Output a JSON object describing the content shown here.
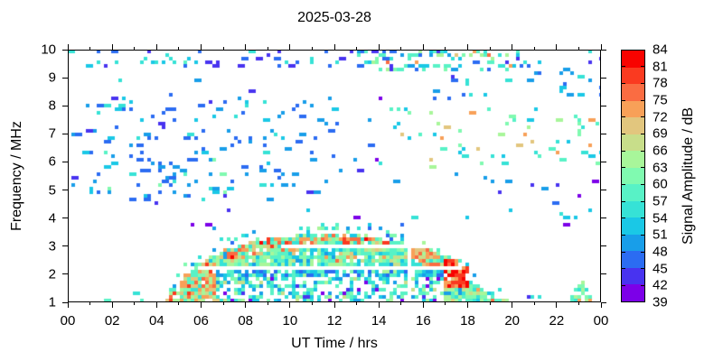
{
  "title": "2025-03-28",
  "chart_data": {
    "type": "heatmap",
    "title": "2025-03-28",
    "xlabel": "UT Time / hrs",
    "ylabel": "Frequency / MHz",
    "xlim": [
      0,
      24
    ],
    "ylim": [
      1,
      10
    ],
    "x_ticks": {
      "labels": [
        "00",
        "02",
        "04",
        "06",
        "08",
        "10",
        "12",
        "14",
        "16",
        "18",
        "20",
        "22",
        "00"
      ],
      "hours": [
        0,
        2,
        4,
        6,
        8,
        10,
        12,
        14,
        16,
        18,
        20,
        22,
        24
      ],
      "minor_hours": [
        1,
        3,
        5,
        7,
        9,
        11,
        13,
        15,
        17,
        19,
        21,
        23
      ]
    },
    "y_ticks": {
      "labels": [
        "1",
        "2",
        "3",
        "4",
        "5",
        "6",
        "7",
        "8",
        "9",
        "10"
      ],
      "values": [
        1,
        2,
        3,
        4,
        5,
        6,
        7,
        8,
        9,
        10
      ]
    },
    "colorbar": {
      "label": "Signal Amplitude / dB",
      "tick_labels": [
        "39",
        "42",
        "45",
        "48",
        "51",
        "54",
        "57",
        "60",
        "63",
        "66",
        "69",
        "72",
        "75",
        "78",
        "81",
        "84"
      ],
      "tick_values": [
        39,
        42,
        45,
        48,
        51,
        54,
        57,
        60,
        63,
        66,
        69,
        72,
        75,
        78,
        81,
        84
      ],
      "segment_colors_low_to_high": [
        "#7c00e8",
        "#4833f0",
        "#2b6cf2",
        "#189ee9",
        "#1ac8e6",
        "#36e2d6",
        "#58f2c6",
        "#80fab0",
        "#a8f69a",
        "#c8de8a",
        "#e2c67e",
        "#f8a058",
        "#fa6c42",
        "#fa3a20",
        "#f80300"
      ]
    },
    "heatmap": {
      "seed": 7,
      "cell": 4,
      "envelope": [
        [
          4.4,
          1.05
        ],
        [
          5.0,
          1.7
        ],
        [
          6.0,
          2.45
        ],
        [
          7.0,
          2.9
        ],
        [
          8.0,
          3.15
        ],
        [
          9.0,
          3.3
        ],
        [
          10.5,
          3.42
        ],
        [
          12.0,
          3.45
        ],
        [
          13.5,
          3.38
        ],
        [
          14.8,
          3.22
        ],
        [
          15.8,
          2.95
        ],
        [
          16.8,
          2.7
        ],
        [
          17.4,
          2.55
        ],
        [
          18.0,
          2.25
        ],
        [
          18.3,
          1.6
        ],
        [
          18.9,
          1.35
        ],
        [
          19.6,
          1.05
        ]
      ],
      "white_stripes": [
        {
          "t": [
            5.9,
            17.7
          ],
          "f": [
            2.12,
            2.3
          ]
        },
        {
          "t": [
            9.55,
            17.4
          ],
          "f": [
            2.9,
            3.06
          ]
        }
      ],
      "vertical_gap": {
        "t": [
          15.22,
          15.5
        ],
        "f": [
          1,
          3.75
        ]
      },
      "dome_regions": [
        {
          "t": [
            16.9,
            18.0
          ],
          "f": [
            1.55,
            2.6
          ],
          "p": 0.93,
          "db": [
            [
              5,
              78,
              84
            ],
            [
              2,
              72,
              78
            ],
            [
              1,
              63,
              72
            ]
          ]
        },
        {
          "t": [
            15.5,
            16.9
          ],
          "f": [
            2.15,
            2.9
          ],
          "p": 0.88,
          "db": [
            [
              3,
              69,
              78
            ],
            [
              2,
              60,
              69
            ],
            [
              2,
              54,
              60
            ]
          ]
        },
        {
          "t": [
            4.4,
            5.05
          ],
          "f": [
            1.0,
            1.8
          ],
          "p": 0.9,
          "db": [
            [
              3,
              72,
              82
            ],
            [
              2,
              63,
              72
            ],
            [
              1,
              57,
              63
            ]
          ]
        },
        {
          "t": [
            4.4,
            6.7
          ],
          "f": [
            1.15,
            2.45
          ],
          "p": 0.9,
          "db": [
            [
              4,
              69,
              79
            ],
            [
              3,
              60,
              69
            ],
            [
              2,
              54,
              60
            ]
          ]
        },
        {
          "top_rel": [
            -0.5,
            -0.05
          ],
          "t": [
            7.2,
            14.4
          ],
          "p": 0.9,
          "db": [
            [
              4,
              69,
              78
            ],
            [
              3,
              60,
              69
            ],
            [
              2,
              54,
              60
            ],
            [
              1,
              78,
              82
            ]
          ]
        },
        {
          "t": [
            6.0,
            17.6
          ],
          "f": [
            1.95,
            2.12
          ],
          "p": 0.8,
          "db": [
            [
              4,
              45,
              54
            ],
            [
              2,
              54,
              60
            ],
            [
              1,
              60,
              66
            ]
          ]
        },
        {
          "t": [
            6.9,
            17.0
          ],
          "f": [
            1.06,
            1.95
          ],
          "p": 0.52,
          "db": [
            [
              3,
              48,
              54
            ],
            [
              3,
              54,
              60
            ],
            [
              2,
              57,
              63
            ],
            [
              1,
              39,
              45
            ],
            [
              1,
              63,
              69
            ]
          ]
        },
        {
          "t": [
            4.4,
            19.6
          ],
          "f": [
            1,
            10
          ],
          "p": 0.9,
          "db": [
            [
              5,
              57,
              66
            ],
            [
              3,
              54,
              60
            ],
            [
              2,
              63,
              69
            ],
            [
              2,
              48,
              54
            ],
            [
              1,
              69,
              76
            ]
          ]
        }
      ],
      "above_scatter": {
        "band": 0.4,
        "p": 0.2,
        "db": [
          [
            2,
            45,
            54
          ],
          [
            2,
            54,
            60
          ],
          [
            1,
            60,
            66
          ]
        ]
      },
      "spikes": {
        "t": [
          18.05,
          19.45
        ],
        "p": 0.6,
        "db_tall": [
          [
            3,
            69,
            78
          ],
          [
            2,
            78,
            83
          ],
          [
            2,
            57,
            66
          ]
        ],
        "db_low": [
          [
            4,
            57,
            66
          ],
          [
            1,
            66,
            72
          ],
          [
            1,
            51,
            57
          ]
        ]
      },
      "bumps": [
        {
          "t": [
            19.3,
            20.0
          ],
          "top": 1.15,
          "p": 0.5,
          "db": [
            [
              3,
              57,
              63
            ],
            [
              1,
              63,
              69
            ]
          ]
        },
        {
          "t": [
            20.7,
            21.4
          ],
          "top": 1.35,
          "p": 0.35,
          "db": [
            [
              2,
              54,
              60
            ],
            [
              1,
              60,
              66
            ]
          ]
        },
        {
          "t": [
            22.55,
            23.75
          ],
          "top": 1.75,
          "p": 0.7,
          "db": [
            [
              3,
              54,
              63
            ],
            [
              2,
              57,
              66
            ],
            [
              1,
              66,
              75
            ]
          ]
        }
      ],
      "noise_regions": [
        {
          "t": [
            3.3,
            5.6
          ],
          "f": [
            9.5,
            9.8
          ],
          "p": 0.3,
          "db": [
            [
              2,
              51,
              57
            ],
            [
              1,
              54,
              60
            ]
          ]
        },
        {
          "t": [
            13,
            20.5
          ],
          "f": [
            9.25,
            9.95
          ],
          "p": 0.3,
          "db": [
            [
              5,
              51,
              60
            ],
            [
              3,
              57,
              66
            ],
            [
              1,
              69,
              78
            ],
            [
              3,
              42,
              51
            ]
          ]
        },
        {
          "t": [
            0,
            24
          ],
          "f": [
            9.3,
            10
          ],
          "p": 0.1,
          "db": [
            [
              6,
              42,
              48
            ],
            [
              2,
              48,
              54
            ],
            [
              2,
              54,
              57
            ]
          ]
        },
        {
          "t": [
            0,
            3
          ],
          "f": [
            7.7,
            8.25
          ],
          "p": 0.12,
          "db": [
            [
              2,
              45,
              51
            ],
            [
              1,
              51,
              57
            ]
          ]
        },
        {
          "t": [
            1,
            9.8
          ],
          "f": [
            4.8,
            6.9
          ],
          "p": 0.085,
          "db": [
            [
              6,
              45,
              51
            ],
            [
              3,
              51,
              57
            ],
            [
              1,
              57,
              63
            ]
          ]
        },
        {
          "t": [
            0.2,
            12.2
          ],
          "f": [
            4.6,
            8.3
          ],
          "p": 0.05,
          "db": [
            [
              6,
              45,
              51
            ],
            [
              3,
              51,
              57
            ],
            [
              1,
              42,
              45
            ]
          ]
        },
        {
          "t": [
            14.7,
            19.8
          ],
          "f": [
            5.3,
            5.6
          ],
          "p": 0.07,
          "db": [
            [
              1,
              45,
              51
            ],
            [
              1,
              48,
              54
            ]
          ]
        },
        {
          "t": [
            14.5,
            24
          ],
          "f": [
            5.8,
            7.9
          ],
          "p": 0.06,
          "db": [
            [
              4,
              51,
              60
            ],
            [
              3,
              57,
              66
            ],
            [
              1,
              69,
              75
            ]
          ]
        },
        {
          "t": [
            14,
            24
          ],
          "f": [
            3.9,
            4.35
          ],
          "p": 0.04,
          "db": [
            [
              1,
              51,
              57
            ],
            [
              1,
              54,
              60
            ]
          ]
        },
        {
          "t": [
            16,
            24
          ],
          "f": [
            8.3,
            9.3
          ],
          "p": 0.05,
          "db": [
            [
              2,
              45,
              51
            ],
            [
              1,
              51,
              57
            ],
            [
              1,
              42,
              45
            ]
          ]
        },
        {
          "t": [
            18.8,
            21.5
          ],
          "f": [
            1,
            1.4
          ],
          "p": 0.05,
          "db": [
            [
              2,
              39,
              45
            ],
            [
              1,
              48,
              54
            ]
          ]
        },
        {
          "t": [
            20.5,
            23
          ],
          "f": [
            2.3,
            2.6
          ],
          "p": 0.02,
          "db": [
            [
              1,
              48,
              54
            ]
          ]
        },
        {
          "t": [
            0,
            4.4
          ],
          "f": [
            1,
            1.15
          ],
          "p": 0.12,
          "db": [
            [
              1,
              51,
              57
            ],
            [
              1,
              57,
              60
            ]
          ]
        },
        {
          "t": [
            2.5,
            4.4
          ],
          "f": [
            1,
            1.6
          ],
          "p": 0.025,
          "db": [
            [
              1,
              54,
              60
            ]
          ]
        },
        {
          "t": [
            0,
            24
          ],
          "f": [
            3.6,
            10
          ],
          "p": 0.012,
          "db": [
            [
              3,
              39,
              45
            ],
            [
              3,
              45,
              51
            ],
            [
              1,
              51,
              57
            ]
          ]
        }
      ],
      "dash_prob": 0.3
    }
  }
}
